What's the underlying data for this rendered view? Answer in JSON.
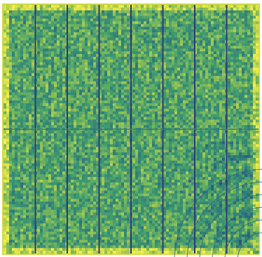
{
  "chart_data": {
    "type": "heatmap",
    "title": "",
    "xlabel": "",
    "ylabel": "",
    "colormap": {
      "name": "viridis",
      "stops": [
        "#3b1f66",
        "#2a4f7d",
        "#2f7a7c",
        "#3f9a6f",
        "#79b75c",
        "#c8d84a",
        "#f2ee4a"
      ],
      "background_level": 0.55
    },
    "panels": {
      "rows": 2,
      "cols": 8,
      "row_split_fraction": 0.5,
      "column_edge_level": 0.1,
      "row_edge_level": 0.35
    },
    "diagonal_band": {
      "present": true,
      "location": "bottom-right",
      "level": 0.25
    },
    "border": {
      "present": true,
      "level": 0.85
    }
  }
}
